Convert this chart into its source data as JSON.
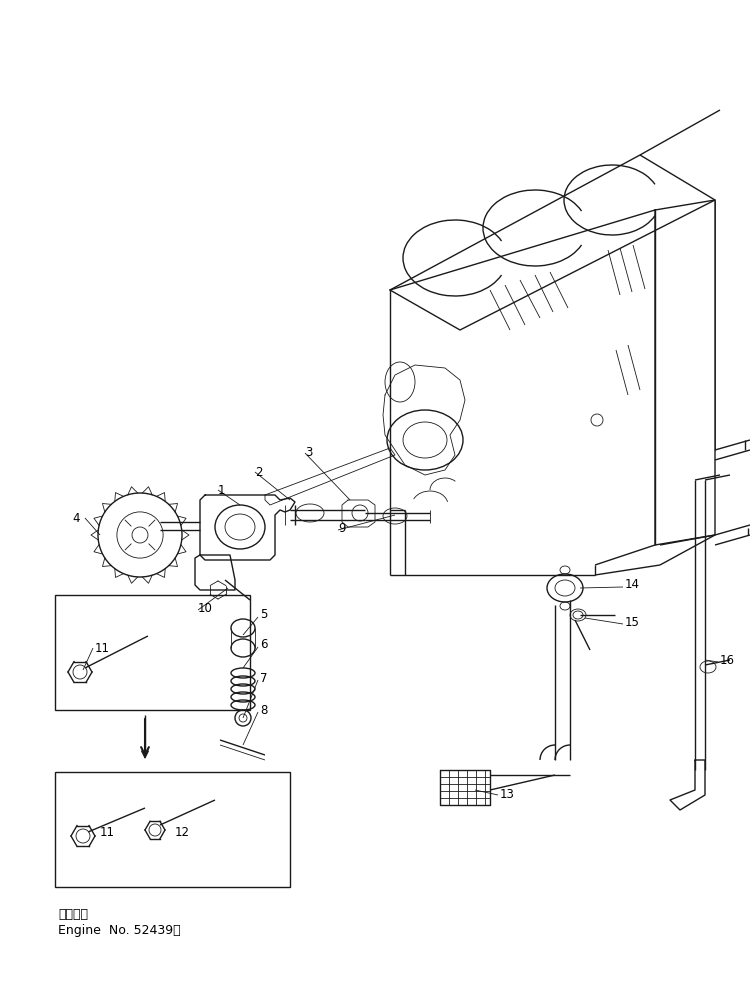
{
  "background_color": "#ffffff",
  "fig_width": 7.5,
  "fig_height": 9.86,
  "dpi": 100,
  "title_line1": "適用号機",
  "title_line2": "Engine  No. 52439～",
  "lc": "#1a1a1a",
  "lw_main": 1.0,
  "lw_thin": 0.6,
  "lw_thick": 1.5
}
